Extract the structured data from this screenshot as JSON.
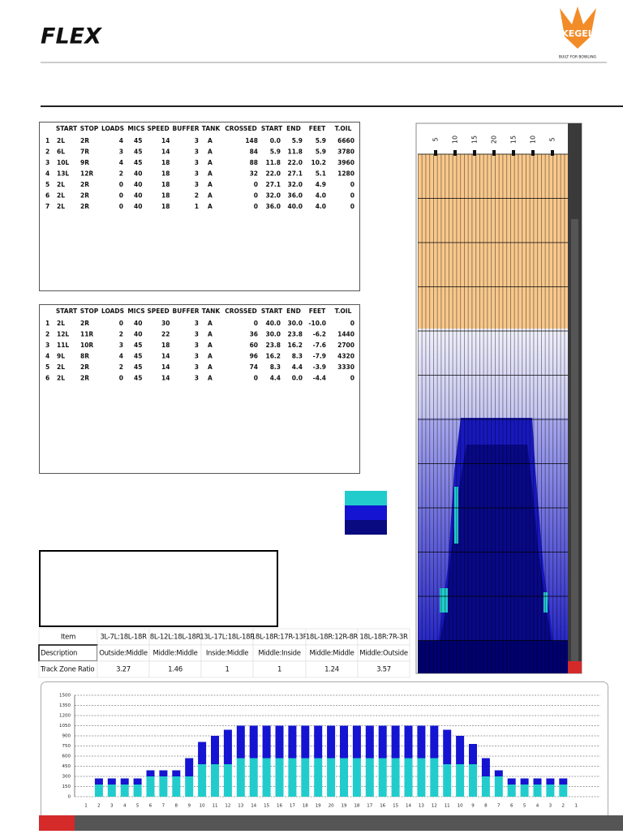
{
  "header": {
    "logo": "FLEX",
    "brand": "KEGEL",
    "tagline": "BUILT FOR BOWLING"
  },
  "forward_table": {
    "columns": [
      "START",
      "STOP",
      "LOADS",
      "MICS",
      "SPEED",
      "BUFFER",
      "TANK",
      "CROSSED",
      "START",
      "END",
      "FEET",
      "T.OIL"
    ],
    "rows": [
      [
        "1",
        "2L",
        "2R",
        "4",
        "45",
        "14",
        "3",
        "A",
        "148",
        "0.0",
        "5.9",
        "5.9",
        "6660"
      ],
      [
        "2",
        "6L",
        "7R",
        "3",
        "45",
        "14",
        "3",
        "A",
        "84",
        "5.9",
        "11.8",
        "5.9",
        "3780"
      ],
      [
        "3",
        "10L",
        "9R",
        "4",
        "45",
        "18",
        "3",
        "A",
        "88",
        "11.8",
        "22.0",
        "10.2",
        "3960"
      ],
      [
        "4",
        "13L",
        "12R",
        "2",
        "40",
        "18",
        "3",
        "A",
        "32",
        "22.0",
        "27.1",
        "5.1",
        "1280"
      ],
      [
        "5",
        "2L",
        "2R",
        "0",
        "40",
        "18",
        "3",
        "A",
        "0",
        "27.1",
        "32.0",
        "4.9",
        "0"
      ],
      [
        "6",
        "2L",
        "2R",
        "0",
        "40",
        "18",
        "2",
        "A",
        "0",
        "32.0",
        "36.0",
        "4.0",
        "0"
      ],
      [
        "7",
        "2L",
        "2R",
        "0",
        "40",
        "18",
        "1",
        "A",
        "0",
        "36.0",
        "40.0",
        "4.0",
        "0"
      ]
    ]
  },
  "reverse_table": {
    "columns": [
      "START",
      "STOP",
      "LOADS",
      "MICS",
      "SPEED",
      "BUFFER",
      "TANK",
      "CROSSED",
      "START",
      "END",
      "FEET",
      "T.OIL"
    ],
    "rows": [
      [
        "1",
        "2L",
        "2R",
        "0",
        "40",
        "30",
        "3",
        "A",
        "0",
        "40.0",
        "30.0",
        "-10.0",
        "0"
      ],
      [
        "2",
        "12L",
        "11R",
        "2",
        "40",
        "22",
        "3",
        "A",
        "36",
        "30.0",
        "23.8",
        "-6.2",
        "1440"
      ],
      [
        "3",
        "11L",
        "10R",
        "3",
        "45",
        "18",
        "3",
        "A",
        "60",
        "23.8",
        "16.2",
        "-7.6",
        "2700"
      ],
      [
        "4",
        "9L",
        "8R",
        "4",
        "45",
        "14",
        "3",
        "A",
        "96",
        "16.2",
        "8.3",
        "-7.9",
        "4320"
      ],
      [
        "5",
        "2L",
        "2R",
        "2",
        "45",
        "14",
        "3",
        "A",
        "74",
        "8.3",
        "4.4",
        "-3.9",
        "3330"
      ],
      [
        "6",
        "2L",
        "2R",
        "0",
        "45",
        "14",
        "3",
        "A",
        "0",
        "4.4",
        "0.0",
        "-4.4",
        "0"
      ]
    ]
  },
  "ratio_table": {
    "header": [
      "Item",
      "3L-7L:18L-18R",
      "8L-12L:18L-18R",
      "13L-17L:18L-18R",
      "18L-18R:17R-13R",
      "18L-18R:12R-8R",
      "18L-18R:7R-3R"
    ],
    "rows": [
      [
        "Description",
        "Outside:Middle",
        "Middle:Middle",
        "Inside:Middle",
        "Middle:Inside",
        "Middle:Middle",
        "Middle:Outside"
      ],
      [
        "Track Zone Ratio",
        "3.27",
        "1.46",
        "1",
        "1",
        "1.24",
        "3.57"
      ]
    ]
  },
  "lane": {
    "board_labels": [
      "5",
      "10",
      "15",
      "20",
      "15",
      "10",
      "5"
    ]
  },
  "chart_data": {
    "type": "bar",
    "stacked": true,
    "categories": [
      "1",
      "2",
      "3",
      "4",
      "5",
      "6",
      "7",
      "8",
      "9",
      "10",
      "11",
      "12",
      "13",
      "14",
      "15",
      "16",
      "17",
      "18",
      "19",
      "20",
      "19",
      "18",
      "17",
      "16",
      "15",
      "14",
      "13",
      "12",
      "11",
      "10",
      "9",
      "8",
      "7",
      "6",
      "5",
      "4",
      "3",
      "2",
      "1"
    ],
    "series": [
      {
        "color": "#22cccc",
        "values": [
          0,
          180,
          180,
          180,
          180,
          300,
          300,
          300,
          300,
          480,
          480,
          480,
          570,
          570,
          570,
          570,
          570,
          570,
          570,
          570,
          570,
          570,
          570,
          570,
          570,
          570,
          570,
          570,
          480,
          480,
          480,
          300,
          300,
          180,
          180,
          180,
          180,
          180,
          0
        ]
      },
      {
        "color": "#1414d2",
        "values": [
          0,
          90,
          90,
          90,
          90,
          90,
          90,
          90,
          270,
          330,
          420,
          510,
          480,
          480,
          480,
          480,
          480,
          480,
          480,
          480,
          480,
          480,
          480,
          480,
          480,
          480,
          480,
          480,
          510,
          420,
          300,
          270,
          90,
          90,
          90,
          90,
          90,
          90,
          0
        ]
      }
    ],
    "ylim": [
      0,
      1500
    ],
    "yticks": [
      0,
      150,
      300,
      450,
      600,
      750,
      900,
      1050,
      1200,
      1350,
      1500
    ],
    "grid": true
  }
}
